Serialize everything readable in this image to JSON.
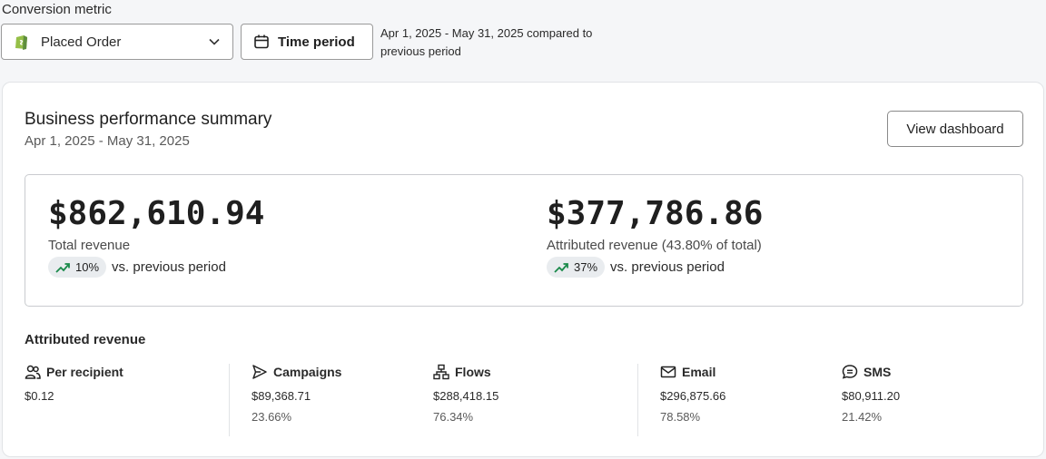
{
  "header": {
    "conversion_label": "Conversion metric",
    "metric_selected": "Placed Order",
    "time_period_label": "Time period",
    "period_range_line1": "Apr 1, 2025 - May 31, 2025 compared to",
    "period_range_line2": "previous period"
  },
  "card": {
    "title": "Business performance summary",
    "date_range": "Apr 1, 2025 - May 31, 2025",
    "view_dashboard": "View dashboard"
  },
  "kpis": [
    {
      "value": "$862,610.94",
      "label": "Total revenue",
      "change": "10%",
      "trend_text": "vs. previous period"
    },
    {
      "value": "$377,786.86",
      "label": "Attributed revenue (43.80% of total)",
      "change": "37%",
      "trend_text": "vs. previous period"
    }
  ],
  "attributed": {
    "title": "Attributed revenue",
    "items": [
      {
        "icon": "people-icon",
        "label": "Per recipient",
        "value": "$0.12",
        "pct": ""
      },
      {
        "icon": "send-icon",
        "label": "Campaigns",
        "value": "$89,368.71",
        "pct": "23.66%"
      },
      {
        "icon": "flow-icon",
        "label": "Flows",
        "value": "$288,418.15",
        "pct": "76.34%"
      },
      {
        "icon": "mail-icon",
        "label": "Email",
        "value": "$296,875.66",
        "pct": "78.58%"
      },
      {
        "icon": "chat-icon",
        "label": "SMS",
        "value": "$80,911.20",
        "pct": "21.42%"
      }
    ]
  },
  "colors": {
    "trend_up": "#1a8a4a",
    "shopify_green": "#95bf47"
  }
}
